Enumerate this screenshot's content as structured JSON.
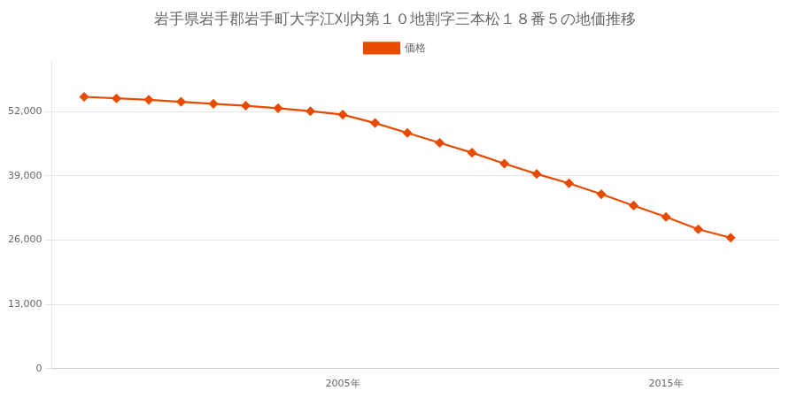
{
  "chart_data": {
    "type": "line",
    "title": "岩手県岩手郡岩手町大字江刈内第１０地割字三本松１８番５の地価推移",
    "x": [
      1997,
      1998,
      1999,
      2000,
      2001,
      2002,
      2003,
      2004,
      2005,
      2006,
      2007,
      2008,
      2009,
      2010,
      2011,
      2012,
      2013,
      2014,
      2015,
      2016,
      2017
    ],
    "series": [
      {
        "name": "価格",
        "color": "#E84A00",
        "marker": "diamond",
        "line_style": "solid",
        "values": [
          55000,
          54700,
          54400,
          54000,
          53600,
          53200,
          52700,
          52100,
          51400,
          49700,
          47700,
          45700,
          43700,
          41500,
          39400,
          37500,
          35300,
          33000,
          30700,
          28200,
          26500
        ]
      }
    ],
    "xlim": [
      1996,
      2018.5
    ],
    "xticks": [
      {
        "value": 2005,
        "label": "2005年"
      },
      {
        "value": 2015,
        "label": "2015年"
      }
    ],
    "ylim": [
      0,
      62000
    ],
    "yticks": [
      0,
      {
        "value": 13000,
        "label": "13,000"
      },
      {
        "value": 26000,
        "label": "26,000"
      },
      {
        "value": 39000,
        "label": "39,000"
      },
      {
        "value": 52000,
        "label": "52,000"
      }
    ],
    "grid": "y",
    "legend": "top"
  }
}
